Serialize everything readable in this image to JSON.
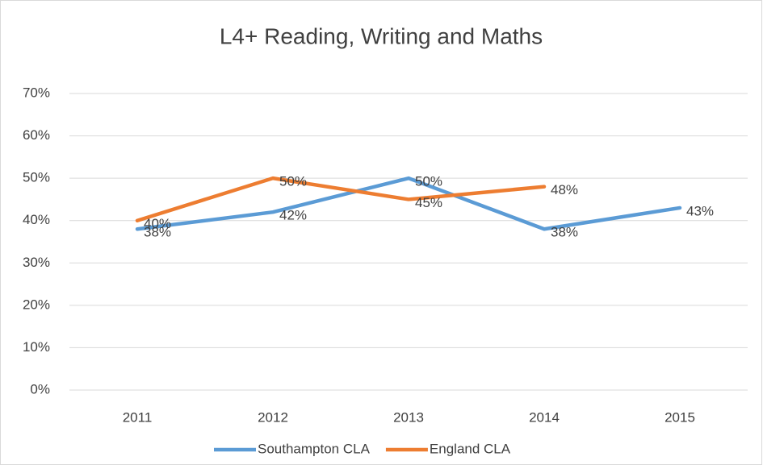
{
  "chart_data": {
    "type": "line",
    "title": "L4+ Reading, Writing and Maths",
    "categories": [
      "2011",
      "2012",
      "2013",
      "2014",
      "2015"
    ],
    "series": [
      {
        "name": "Southampton CLA",
        "color": "#5b9bd5",
        "values": [
          38,
          42,
          50,
          38,
          43
        ],
        "value_labels": [
          "38%",
          "42%",
          "50%",
          "38%",
          "43%"
        ]
      },
      {
        "name": "England CLA",
        "color": "#ed7d31",
        "values": [
          40,
          50,
          45,
          48,
          null
        ],
        "value_labels": [
          "40%",
          "50%",
          "45%",
          "48%",
          null
        ]
      }
    ],
    "ylim": [
      0,
      70
    ],
    "yticks": [
      {
        "value": 0,
        "label": "0%"
      },
      {
        "value": 10,
        "label": "10%"
      },
      {
        "value": 20,
        "label": "20%"
      },
      {
        "value": 30,
        "label": "30%"
      },
      {
        "value": 40,
        "label": "40%"
      },
      {
        "value": 50,
        "label": "50%"
      },
      {
        "value": 60,
        "label": "60%"
      },
      {
        "value": 70,
        "label": "70%"
      }
    ],
    "grid": true,
    "legend": "bottom"
  }
}
